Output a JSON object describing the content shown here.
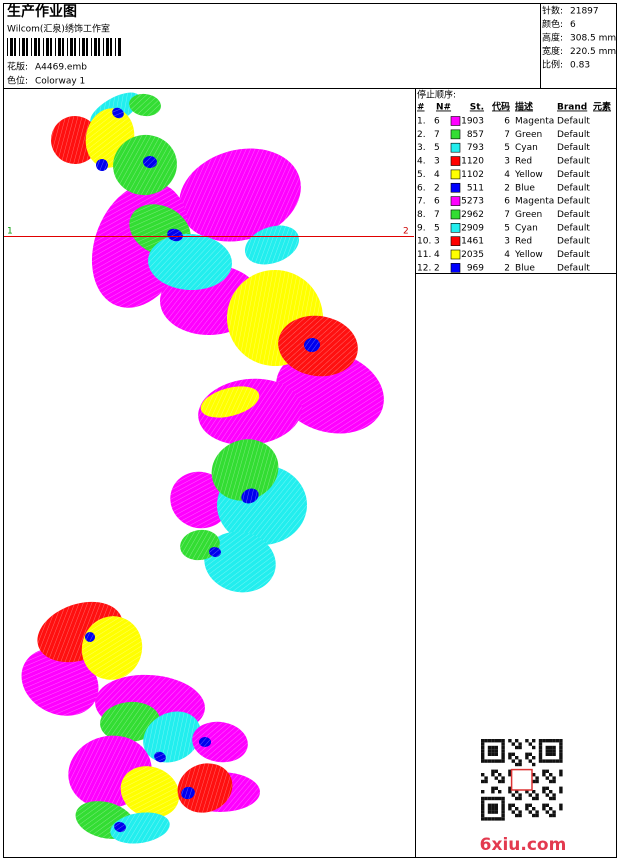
{
  "header": {
    "title": "生产作业图",
    "company": "Wilcom(汇泉)绣饰工作室",
    "design": {
      "label": "花版:",
      "value": "A4469.emb"
    },
    "colorway": {
      "label": "色位:",
      "value": "Colorway 1"
    }
  },
  "stats": [
    {
      "label": "针数:",
      "value": "21897"
    },
    {
      "label": "颜色:",
      "value": "6"
    },
    {
      "label": "高度:",
      "value": "308.5 mm"
    },
    {
      "label": "宽度:",
      "value": "220.5 mm"
    },
    {
      "label": "比例:",
      "value": "0.83"
    }
  ],
  "stop_sequence": {
    "title": "停止顺序:",
    "columns": [
      "#",
      "N#",
      "St.",
      "代码",
      "描述",
      "Brand",
      "元素"
    ],
    "rows": [
      {
        "index": "1.",
        "needle": 6,
        "color": "#ff00ff",
        "stitches": 1903,
        "code": 6,
        "description": "Magenta",
        "brand": "Default"
      },
      {
        "index": "2.",
        "needle": 7,
        "color": "#33dd33",
        "stitches": 857,
        "code": 7,
        "description": "Green",
        "brand": "Default"
      },
      {
        "index": "3.",
        "needle": 5,
        "color": "#22eeee",
        "stitches": 793,
        "code": 5,
        "description": "Cyan",
        "brand": "Default"
      },
      {
        "index": "4.",
        "needle": 3,
        "color": "#ff0000",
        "stitches": 1120,
        "code": 3,
        "description": "Red",
        "brand": "Default"
      },
      {
        "index": "5.",
        "needle": 4,
        "color": "#ffff00",
        "stitches": 1102,
        "code": 4,
        "description": "Yellow",
        "brand": "Default"
      },
      {
        "index": "6.",
        "needle": 2,
        "color": "#0000ff",
        "stitches": 511,
        "code": 2,
        "description": "Blue",
        "brand": "Default"
      },
      {
        "index": "7.",
        "needle": 6,
        "color": "#ff00ff",
        "stitches": 5273,
        "code": 6,
        "description": "Magenta",
        "brand": "Default"
      },
      {
        "index": "8.",
        "needle": 7,
        "color": "#33dd33",
        "stitches": 2962,
        "code": 7,
        "description": "Green",
        "brand": "Default"
      },
      {
        "index": "9.",
        "needle": 5,
        "color": "#22eeee",
        "stitches": 2909,
        "code": 5,
        "description": "Cyan",
        "brand": "Default"
      },
      {
        "index": "10.",
        "needle": 3,
        "color": "#ff0000",
        "stitches": 1461,
        "code": 3,
        "description": "Red",
        "brand": "Default"
      },
      {
        "index": "11.",
        "needle": 4,
        "color": "#ffff00",
        "stitches": 2035,
        "code": 4,
        "description": "Yellow",
        "brand": "Default"
      },
      {
        "index": "12.",
        "needle": 2,
        "color": "#0000ff",
        "stitches": 969,
        "code": 2,
        "description": "Blue",
        "brand": "Default"
      }
    ]
  },
  "design_area": {
    "marker_start": "1",
    "marker_end": "2"
  },
  "watermark": "6xiu.com"
}
